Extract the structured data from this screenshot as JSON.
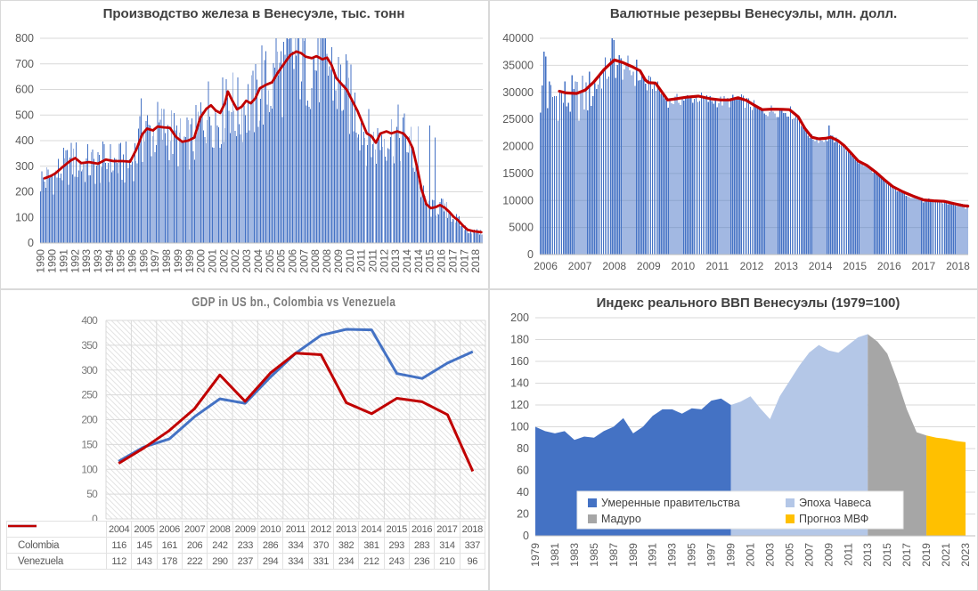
{
  "colors": {
    "bar_blue": "#4472C4",
    "trend_red": "#C00000",
    "area_dark_blue": "#4472C4",
    "area_light_blue": "#B4C7E7",
    "area_gray": "#A6A6A6",
    "area_gold": "#FFC000",
    "grid": "#D9D9D9",
    "axis_text": "#595959",
    "title_text": "#404040",
    "gdp_text": "#7a7a7a"
  },
  "chart_data": [
    {
      "type": "bar",
      "title": "Производство железа в Венесуэле, тыс. тонн",
      "ylabel": "тыс. тонн",
      "x_range": [
        1990,
        2019
      ],
      "ylim": [
        0,
        800
      ],
      "yticks": [
        0,
        100,
        200,
        300,
        400,
        500,
        600,
        700,
        800
      ],
      "bars": {
        "count": 348,
        "frequency": "monthly",
        "mode": "mult",
        "noise_frac": 0.55,
        "clip": [
          22,
          800
        ],
        "spikes": [
          [
            1996.6,
            565
          ],
          [
            2002.2,
            640
          ],
          [
            2004.55,
            772
          ],
          [
            2005.42,
            800
          ],
          [
            2005.95,
            786
          ],
          [
            2006.32,
            796
          ],
          [
            2006.72,
            800
          ],
          [
            2007.25,
            790
          ],
          [
            2014.75,
            455
          ],
          [
            2015.5,
            460
          ],
          [
            2015.9,
            412
          ]
        ]
      },
      "trend": [
        [
          1990.3,
          253
        ],
        [
          1990.7,
          262
        ],
        [
          1991.0,
          272
        ],
        [
          1991.5,
          298
        ],
        [
          1992.0,
          322
        ],
        [
          1992.3,
          332
        ],
        [
          1992.7,
          312
        ],
        [
          1993.2,
          316
        ],
        [
          1993.8,
          310
        ],
        [
          1994.3,
          326
        ],
        [
          1994.8,
          320
        ],
        [
          1995.4,
          320
        ],
        [
          1995.9,
          318
        ],
        [
          1996.3,
          365
        ],
        [
          1996.7,
          425
        ],
        [
          1997.0,
          447
        ],
        [
          1997.4,
          440
        ],
        [
          1997.7,
          455
        ],
        [
          1998.1,
          452
        ],
        [
          1998.5,
          450
        ],
        [
          1998.9,
          415
        ],
        [
          1999.3,
          396
        ],
        [
          1999.7,
          400
        ],
        [
          2000.1,
          412
        ],
        [
          2000.5,
          490
        ],
        [
          2000.9,
          525
        ],
        [
          2001.2,
          538
        ],
        [
          2001.5,
          518
        ],
        [
          2001.8,
          508
        ],
        [
          2002.1,
          545
        ],
        [
          2002.3,
          592
        ],
        [
          2002.6,
          556
        ],
        [
          2002.9,
          522
        ],
        [
          2003.2,
          532
        ],
        [
          2003.5,
          556
        ],
        [
          2003.8,
          546
        ],
        [
          2004.1,
          565
        ],
        [
          2004.4,
          605
        ],
        [
          2004.8,
          618
        ],
        [
          2005.2,
          628
        ],
        [
          2005.6,
          668
        ],
        [
          2006.0,
          702
        ],
        [
          2006.4,
          735
        ],
        [
          2006.8,
          748
        ],
        [
          2007.1,
          742
        ],
        [
          2007.4,
          728
        ],
        [
          2007.8,
          722
        ],
        [
          2008.1,
          730
        ],
        [
          2008.5,
          718
        ],
        [
          2008.8,
          724
        ],
        [
          2009.1,
          695
        ],
        [
          2009.4,
          645
        ],
        [
          2009.8,
          618
        ],
        [
          2010.1,
          598
        ],
        [
          2010.4,
          562
        ],
        [
          2010.8,
          515
        ],
        [
          2011.1,
          472
        ],
        [
          2011.4,
          428
        ],
        [
          2011.7,
          418
        ],
        [
          2012.0,
          392
        ],
        [
          2012.3,
          428
        ],
        [
          2012.7,
          436
        ],
        [
          2013.0,
          428
        ],
        [
          2013.4,
          436
        ],
        [
          2013.8,
          428
        ],
        [
          2014.1,
          408
        ],
        [
          2014.4,
          372
        ],
        [
          2014.7,
          295
        ],
        [
          2015.0,
          208
        ],
        [
          2015.3,
          152
        ],
        [
          2015.6,
          136
        ],
        [
          2015.9,
          140
        ],
        [
          2016.2,
          148
        ],
        [
          2016.5,
          138
        ],
        [
          2016.8,
          122
        ],
        [
          2017.1,
          102
        ],
        [
          2017.4,
          88
        ],
        [
          2017.7,
          68
        ],
        [
          2018.0,
          52
        ],
        [
          2018.4,
          46
        ],
        [
          2018.9,
          42
        ]
      ],
      "xticks": {
        "rotate": true,
        "interval_months": 9,
        "labels": [
          "1990",
          "1990",
          "1991",
          "1992",
          "1993",
          "1993",
          "1994",
          "1995",
          "1996",
          "1996",
          "1997",
          "1998",
          "1999",
          "1999",
          "2000",
          "2001",
          "2002",
          "2002",
          "2003",
          "2004",
          "2005",
          "2005",
          "2006",
          "2007",
          "2008",
          "2008",
          "2009",
          "2010",
          "2011",
          "2011",
          "2012",
          "2013",
          "2014",
          "2014",
          "2015",
          "2016",
          "2017",
          "2017",
          "2018"
        ]
      }
    },
    {
      "type": "bar",
      "title": "Валютные резервы Венесуэлы, млн. долл.",
      "ylabel": "млн. долл.",
      "x_range": [
        2005.83,
        2018.3
      ],
      "ylim": [
        0,
        40000
      ],
      "yticks": [
        0,
        5000,
        10000,
        15000,
        20000,
        25000,
        30000,
        35000,
        40000
      ],
      "bars": {
        "count": 245,
        "frequency": "weekly",
        "mode": "add",
        "clip": [
          0,
          40000
        ],
        "amp": [
          [
            2005.8,
            9000
          ],
          [
            2007.4,
            9000
          ],
          [
            2007.6,
            6000
          ],
          [
            2008.9,
            6000
          ],
          [
            2009.1,
            2400
          ],
          [
            2013.2,
            2400
          ],
          [
            2013.4,
            1400
          ],
          [
            2014.4,
            1400
          ],
          [
            2014.6,
            900
          ],
          [
            2018.3,
            900
          ]
        ],
        "spikes": [
          [
            2005.95,
            37500
          ],
          [
            2006.0,
            36600
          ],
          [
            2007.93,
            40000
          ],
          [
            2007.99,
            39700
          ],
          [
            2008.35,
            35300
          ],
          [
            2014.26,
            23900
          ]
        ]
      },
      "trend": [
        [
          2006.4,
          30200
        ],
        [
          2006.6,
          29900
        ],
        [
          2006.9,
          29800
        ],
        [
          2007.15,
          30400
        ],
        [
          2007.4,
          31900
        ],
        [
          2007.7,
          34200
        ],
        [
          2008.0,
          36000
        ],
        [
          2008.25,
          35500
        ],
        [
          2008.5,
          34800
        ],
        [
          2008.75,
          34000
        ],
        [
          2008.9,
          32300
        ],
        [
          2009.0,
          31800
        ],
        [
          2009.2,
          31700
        ],
        [
          2009.55,
          28600
        ],
        [
          2009.8,
          28800
        ],
        [
          2010.1,
          29100
        ],
        [
          2010.45,
          29300
        ],
        [
          2010.8,
          28800
        ],
        [
          2011.1,
          28600
        ],
        [
          2011.35,
          28600
        ],
        [
          2011.6,
          29000
        ],
        [
          2011.85,
          28500
        ],
        [
          2012.05,
          27700
        ],
        [
          2012.3,
          26800
        ],
        [
          2012.6,
          26900
        ],
        [
          2012.9,
          26850
        ],
        [
          2013.1,
          26800
        ],
        [
          2013.35,
          25500
        ],
        [
          2013.55,
          23300
        ],
        [
          2013.75,
          21700
        ],
        [
          2013.95,
          21400
        ],
        [
          2014.15,
          21500
        ],
        [
          2014.3,
          21700
        ],
        [
          2014.5,
          21100
        ],
        [
          2014.7,
          20100
        ],
        [
          2014.9,
          18700
        ],
        [
          2015.1,
          17300
        ],
        [
          2015.35,
          16500
        ],
        [
          2015.6,
          15300
        ],
        [
          2015.85,
          13900
        ],
        [
          2016.1,
          12600
        ],
        [
          2016.4,
          11600
        ],
        [
          2016.7,
          10800
        ],
        [
          2017.0,
          10100
        ],
        [
          2017.3,
          9950
        ],
        [
          2017.6,
          9850
        ],
        [
          2017.9,
          9400
        ],
        [
          2018.15,
          9050
        ],
        [
          2018.29,
          8950
        ]
      ],
      "xticks": {
        "rotate": false,
        "labels": [
          "2006",
          "2007",
          "2008",
          "2009",
          "2010",
          "2011",
          "2012",
          "2013",
          "2014",
          "2015",
          "2016",
          "2017",
          "2018"
        ]
      }
    },
    {
      "type": "line",
      "title": "GDP in US bn., Colombia vs Venezuela",
      "years": [
        "2004",
        "2005",
        "2006",
        "2007",
        "2008",
        "2009",
        "2010",
        "2011",
        "2012",
        "2013",
        "2014",
        "2015",
        "2016",
        "2017",
        "2018"
      ],
      "ylim": [
        0,
        400
      ],
      "yticks": [
        0,
        50,
        100,
        150,
        200,
        250,
        300,
        350,
        400
      ],
      "series": [
        {
          "name": "Colombia",
          "color": "#4472C4",
          "values": [
            116,
            145,
            161,
            206,
            242,
            233,
            286,
            334,
            370,
            382,
            381,
            293,
            283,
            314,
            337
          ]
        },
        {
          "name": "Venezuela",
          "color": "#C00000",
          "values": [
            112,
            143,
            178,
            222,
            290,
            237,
            294,
            334,
            331,
            234,
            212,
            243,
            236,
            210,
            96
          ]
        }
      ]
    },
    {
      "type": "area",
      "title": "Индекс реального ВВП Венесуэлы (1979=100)",
      "x_range": [
        1979,
        2023
      ],
      "ylim": [
        0,
        200
      ],
      "yticks": [
        0,
        20,
        40,
        60,
        80,
        100,
        120,
        140,
        160,
        180,
        200
      ],
      "years_start": 1979,
      "values": [
        100,
        96,
        94,
        96,
        88,
        91,
        90,
        96,
        100,
        108,
        94,
        100,
        110,
        116,
        116,
        112,
        117,
        116,
        124,
        126,
        120,
        123,
        128,
        117,
        107,
        128,
        142,
        156,
        168,
        175,
        170,
        168,
        175,
        182,
        185,
        178,
        167,
        143,
        116,
        95,
        92,
        90,
        89,
        87,
        86
      ],
      "segments": [
        {
          "label": "Умеренные правительства",
          "color": "#4472C4",
          "from": 1979,
          "to": 1999
        },
        {
          "label": "Эпоха Чавеса",
          "color": "#B4C7E7",
          "from": 1999,
          "to": 2013
        },
        {
          "label": "Мадуро",
          "color": "#A6A6A6",
          "from": 2013,
          "to": 2019
        },
        {
          "label": "Прогноз МВФ",
          "color": "#FFC000",
          "from": 2019,
          "to": 2023
        }
      ],
      "xticks": {
        "rotate": true,
        "labels": [
          "1979",
          "1981",
          "1983",
          "1985",
          "1987",
          "1989",
          "1991",
          "1993",
          "1995",
          "1997",
          "1999",
          "2001",
          "2003",
          "2005",
          "2007",
          "2009",
          "2011",
          "2013",
          "2015",
          "2017",
          "2019",
          "2021",
          "2023"
        ]
      }
    }
  ]
}
